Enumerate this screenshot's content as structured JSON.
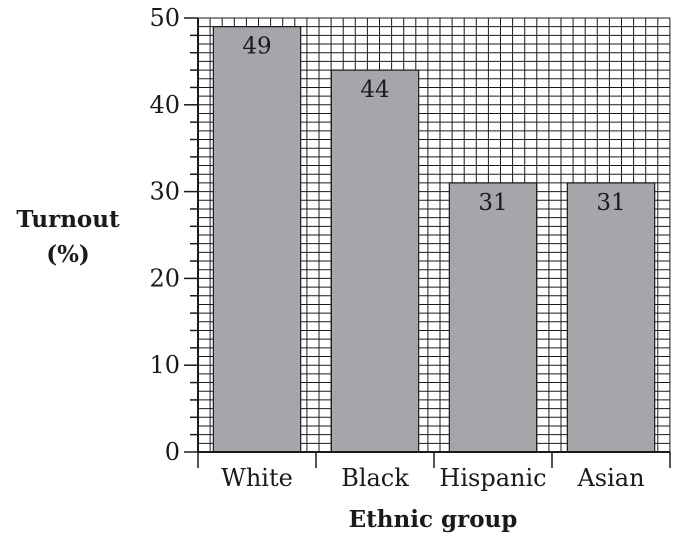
{
  "chart_data": {
    "type": "bar",
    "categories": [
      "White",
      "Black",
      "Hispanic",
      "Asian"
    ],
    "values": [
      49,
      44,
      31,
      31
    ],
    "data_labels": [
      "49",
      "44",
      "31",
      "31"
    ],
    "title": "",
    "xlabel": "Ethnic group",
    "ylabel_line1": "Turnout",
    "ylabel_line2": "(%)",
    "ylim": [
      0,
      50
    ],
    "yticks": [
      0,
      10,
      20,
      30,
      40,
      50
    ],
    "grid": true,
    "bar_color": "#a6a6aa",
    "grid_color": "#1a1a1a"
  }
}
